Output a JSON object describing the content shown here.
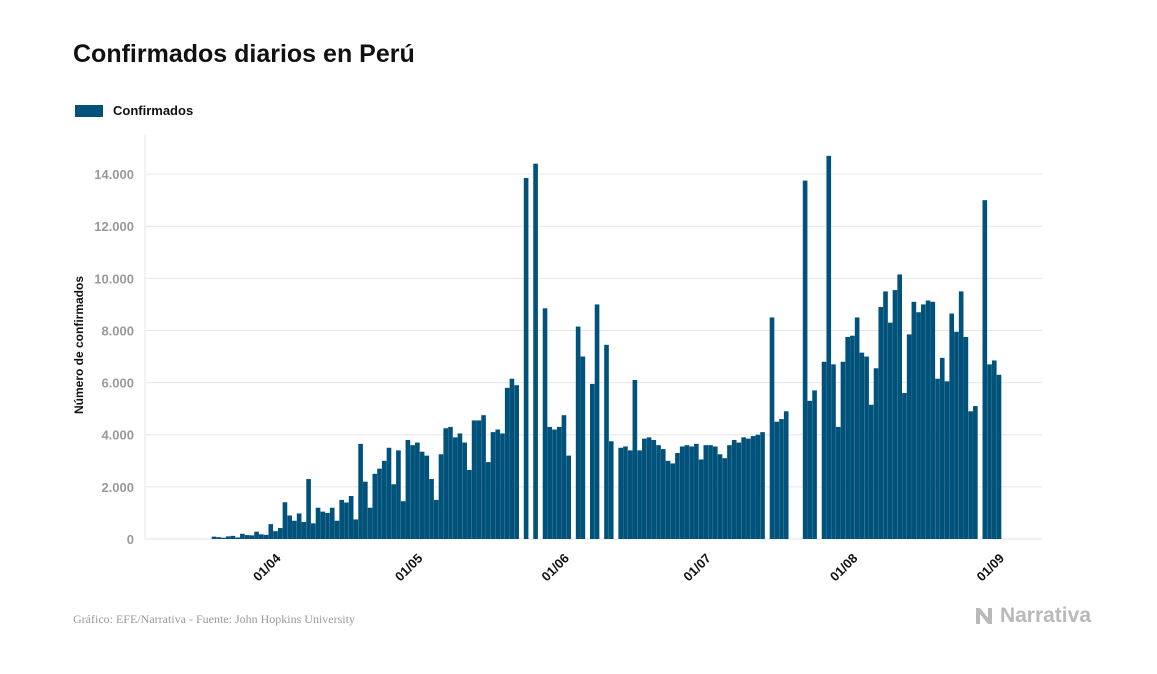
{
  "title": "Confirmados diarios en Perú",
  "footer": "Gráfico: EFE/Narrativa - Fuente: John Hopkins University",
  "brand": "Narrativa",
  "colors": {
    "bar": "#00527a",
    "grid": "#e6e6e6",
    "tick": "#9a9a9a",
    "brand": "#b9b9b9"
  },
  "chart_data": {
    "type": "bar",
    "title": "Confirmados diarios en Perú",
    "xlabel": "",
    "ylabel": "Número de confirmados",
    "ylim": [
      0,
      15500
    ],
    "yticks": [
      0,
      2000,
      4000,
      6000,
      8000,
      10000,
      12000,
      14000
    ],
    "ytick_labels": [
      "0",
      "2.000",
      "4.000",
      "6.000",
      "8.000",
      "10.000",
      "12.000",
      "14.000"
    ],
    "xticks": [
      {
        "label": "01/04",
        "index": 24
      },
      {
        "label": "01/05",
        "index": 54
      },
      {
        "label": "01/06",
        "index": 85
      },
      {
        "label": "01/07",
        "index": 115
      },
      {
        "label": "01/08",
        "index": 146
      },
      {
        "label": "01/09",
        "index": 177
      }
    ],
    "grid": true,
    "legend_position": "top-left",
    "series": [
      {
        "name": "Confirmados",
        "values": [
          0,
          0,
          0,
          0,
          0,
          0,
          0,
          0,
          0,
          0,
          0,
          90,
          70,
          50,
          100,
          120,
          60,
          200,
          150,
          140,
          280,
          180,
          160,
          570,
          300,
          420,
          1410,
          900,
          700,
          980,
          650,
          2300,
          600,
          1200,
          1050,
          1000,
          1200,
          700,
          1500,
          1400,
          1650,
          750,
          3650,
          2200,
          1200,
          2500,
          2700,
          3000,
          3500,
          2100,
          3400,
          1450,
          3800,
          3600,
          3700,
          3350,
          3200,
          2300,
          1500,
          3250,
          4250,
          4300,
          3900,
          4050,
          3700,
          2650,
          4550,
          4550,
          4750,
          2950,
          4100,
          4200,
          4050,
          5800,
          6150,
          5900,
          0,
          13850,
          0,
          14400,
          0,
          8850,
          4300,
          4200,
          4300,
          4750,
          3200,
          0,
          8150,
          7000,
          0,
          5950,
          9000,
          0,
          7450,
          3750,
          0,
          3500,
          3550,
          3400,
          6100,
          3400,
          3850,
          3900,
          3800,
          3600,
          3450,
          3000,
          2900,
          3300,
          3550,
          3600,
          3550,
          3650,
          3050,
          3600,
          3600,
          3550,
          3250,
          3100,
          3600,
          3800,
          3700,
          3900,
          3850,
          3950,
          4000,
          4100,
          0,
          8500,
          4500,
          4600,
          4900,
          0,
          0,
          0,
          13750,
          5300,
          5700,
          0,
          6800,
          14700,
          6700,
          4300,
          6800,
          7750,
          7800,
          8500,
          7150,
          7000,
          5150,
          6550,
          8900,
          9500,
          8300,
          9550,
          10150,
          5600,
          7850,
          9100,
          8700,
          9000,
          9150,
          9100,
          6150,
          6950,
          6050,
          8650,
          7950,
          9500,
          7750,
          4900,
          5100,
          0,
          13000,
          6700,
          6850,
          6300
        ]
      }
    ]
  }
}
